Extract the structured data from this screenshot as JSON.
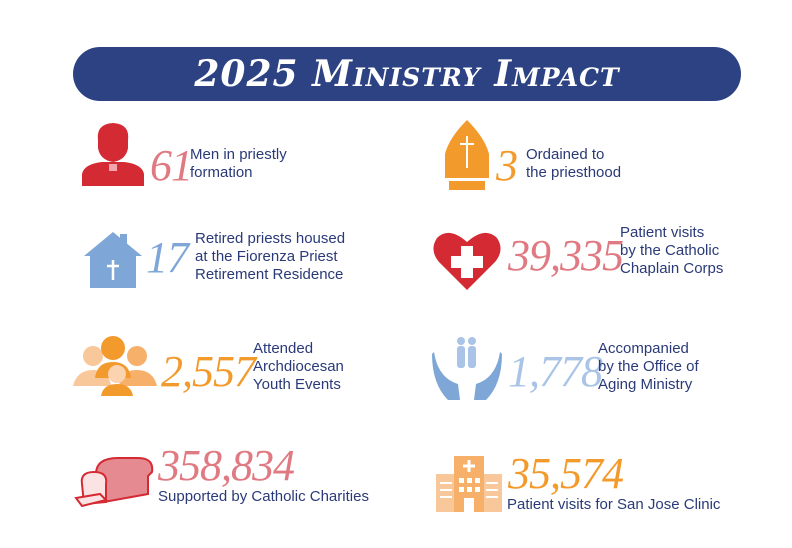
{
  "title": "2025 Ministry Impact",
  "colors": {
    "banner": "#2c4283",
    "text": "#2a3a78",
    "red": "#d42a33",
    "pink": "#e07a82",
    "orange": "#f39a2c",
    "blue": "#7ea6d6"
  },
  "stats": [
    {
      "icon": "priest-icon",
      "number": "61",
      "lines": [
        "Men in priestly",
        "formation"
      ]
    },
    {
      "icon": "mitre-icon",
      "number": "3",
      "lines": [
        "Ordained to",
        "the priesthood"
      ]
    },
    {
      "icon": "house-icon",
      "number": "17",
      "lines": [
        "Retired priests housed",
        "at the Fiorenza Priest",
        "Retirement Residence"
      ]
    },
    {
      "icon": "heart-cross-icon",
      "number": "39,335",
      "lines": [
        "Patient visits",
        "by the Catholic",
        "Chaplain Corps"
      ]
    },
    {
      "icon": "youth-group-icon",
      "number": "2,557",
      "lines": [
        "Attended",
        "Archdiocesan",
        "Youth Events"
      ]
    },
    {
      "icon": "caring-hands-icon",
      "number": "1,778",
      "lines": [
        "Accompanied",
        "by the Office of",
        "Aging Ministry"
      ]
    },
    {
      "icon": "bread-icon",
      "number": "358,834",
      "lines": [
        "Supported by Catholic Charities"
      ]
    },
    {
      "icon": "hospital-icon",
      "number": "35,574",
      "lines": [
        "Patient visits for San Jose Clinic"
      ]
    }
  ]
}
